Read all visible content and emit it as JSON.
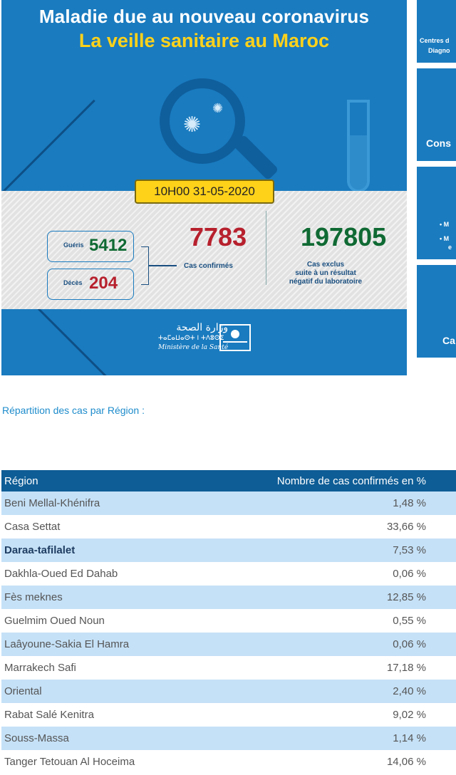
{
  "banner": {
    "title_line1": "Maladie due au nouveau coronavirus",
    "title_line2": "La veille sanitaire au Maroc",
    "datetime": "10H00  31-05-2020",
    "recovered_label": "Guéris",
    "recovered_value": "5412",
    "deaths_label": "Décès",
    "deaths_value": "204",
    "confirmed_value": "7783",
    "confirmed_label": "Cas confirmés",
    "excluded_value": "197805",
    "excluded_label_1": "Cas exclus",
    "excluded_label_2": "suite à un résultat",
    "excluded_label_3": "négatif du laboratoire",
    "ministry_ar": "وزارة الصحة",
    "ministry_tz": "ⵜⴰⵎⴰⵡⴰⵙⵜ ⵏ ⵜⴷⵓⵙⵉ",
    "ministry_fr": "Ministère de la Santé",
    "colors": {
      "blue": "#1a7bbf",
      "yellow": "#ffd21a",
      "red": "#b7202d",
      "green": "#0f6a33"
    }
  },
  "side_cards": {
    "card1_line1": "Centres d",
    "card1_line2": "Diagno",
    "card2_text": "Cons",
    "card3_line1": "• M",
    "card3_line2": "• M",
    "card3_line3": "e",
    "card4_text": "Ca"
  },
  "subtitle": "Répartition des cas par Région :",
  "table": {
    "headers": [
      "Région",
      "Nombre de cas confirmés en %"
    ],
    "rows": [
      {
        "region": "Beni Mellal-Khénifra",
        "pct": "1,48 %"
      },
      {
        "region": "Casa Settat",
        "pct": "33,66 %"
      },
      {
        "region": "Daraa-tafilalet",
        "pct": "7,53 %"
      },
      {
        "region": "Dakhla-Oued Ed Dahab",
        "pct": "0,06 %"
      },
      {
        "region": "Fès meknes",
        "pct": "12,85 %"
      },
      {
        "region": "Guelmim Oued Noun",
        "pct": "0,55 %"
      },
      {
        "region": "Laâyoune-Sakia El Hamra",
        "pct": "0,06 %"
      },
      {
        "region": "Marrakech Safi",
        "pct": "17,18 %"
      },
      {
        "region": "Oriental",
        "pct": "2,40 %"
      },
      {
        "region": "Rabat Salé Kenitra",
        "pct": "9,02 %"
      },
      {
        "region": "Souss-Massa",
        "pct": "1,14 %"
      },
      {
        "region": "Tanger Tetouan Al Hoceima",
        "pct": "14,06 %"
      }
    ]
  }
}
